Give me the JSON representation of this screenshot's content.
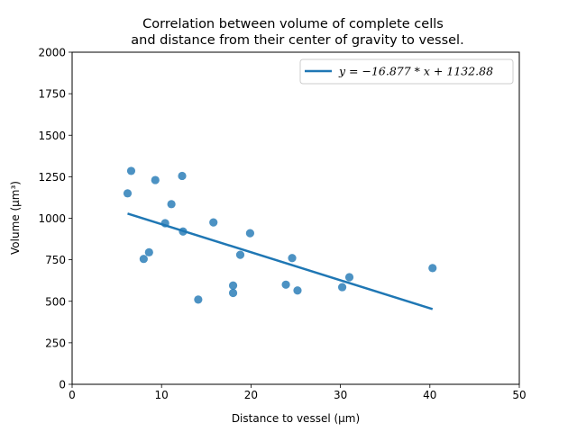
{
  "chart_data": {
    "type": "scatter",
    "title_line1": "Correlation between volume of complete cells",
    "title_line2": "and distance from their center of gravity to vessel.",
    "xlabel": "Distance to vessel (μm)",
    "ylabel": "Volume (μm³)",
    "xlim": [
      0,
      50
    ],
    "ylim": [
      0,
      2000
    ],
    "xticks": [
      0,
      10,
      20,
      30,
      40,
      50
    ],
    "yticks": [
      0,
      250,
      500,
      750,
      1000,
      1250,
      1500,
      1750,
      2000
    ],
    "grid": false,
    "legend_position": "top-right",
    "series": [
      {
        "type": "scatter",
        "color": "#1f77b4",
        "points": [
          {
            "x": 6.2,
            "y": 1150
          },
          {
            "x": 6.6,
            "y": 1285
          },
          {
            "x": 8.0,
            "y": 755
          },
          {
            "x": 8.6,
            "y": 795
          },
          {
            "x": 9.3,
            "y": 1230
          },
          {
            "x": 10.4,
            "y": 970
          },
          {
            "x": 11.1,
            "y": 1085
          },
          {
            "x": 12.3,
            "y": 1255
          },
          {
            "x": 12.4,
            "y": 920
          },
          {
            "x": 14.1,
            "y": 510
          },
          {
            "x": 15.8,
            "y": 975
          },
          {
            "x": 18.0,
            "y": 595
          },
          {
            "x": 18.0,
            "y": 550
          },
          {
            "x": 18.8,
            "y": 780
          },
          {
            "x": 19.9,
            "y": 910
          },
          {
            "x": 23.9,
            "y": 600
          },
          {
            "x": 24.6,
            "y": 760
          },
          {
            "x": 25.2,
            "y": 565
          },
          {
            "x": 30.2,
            "y": 585
          },
          {
            "x": 31.0,
            "y": 645
          },
          {
            "x": 40.3,
            "y": 700
          }
        ]
      },
      {
        "type": "line",
        "name": "y = −16.877 * x + 1132.88",
        "color": "#1f77b4",
        "slope": -16.877,
        "intercept": 1132.88,
        "x_range": [
          6.2,
          40.3
        ]
      }
    ]
  }
}
